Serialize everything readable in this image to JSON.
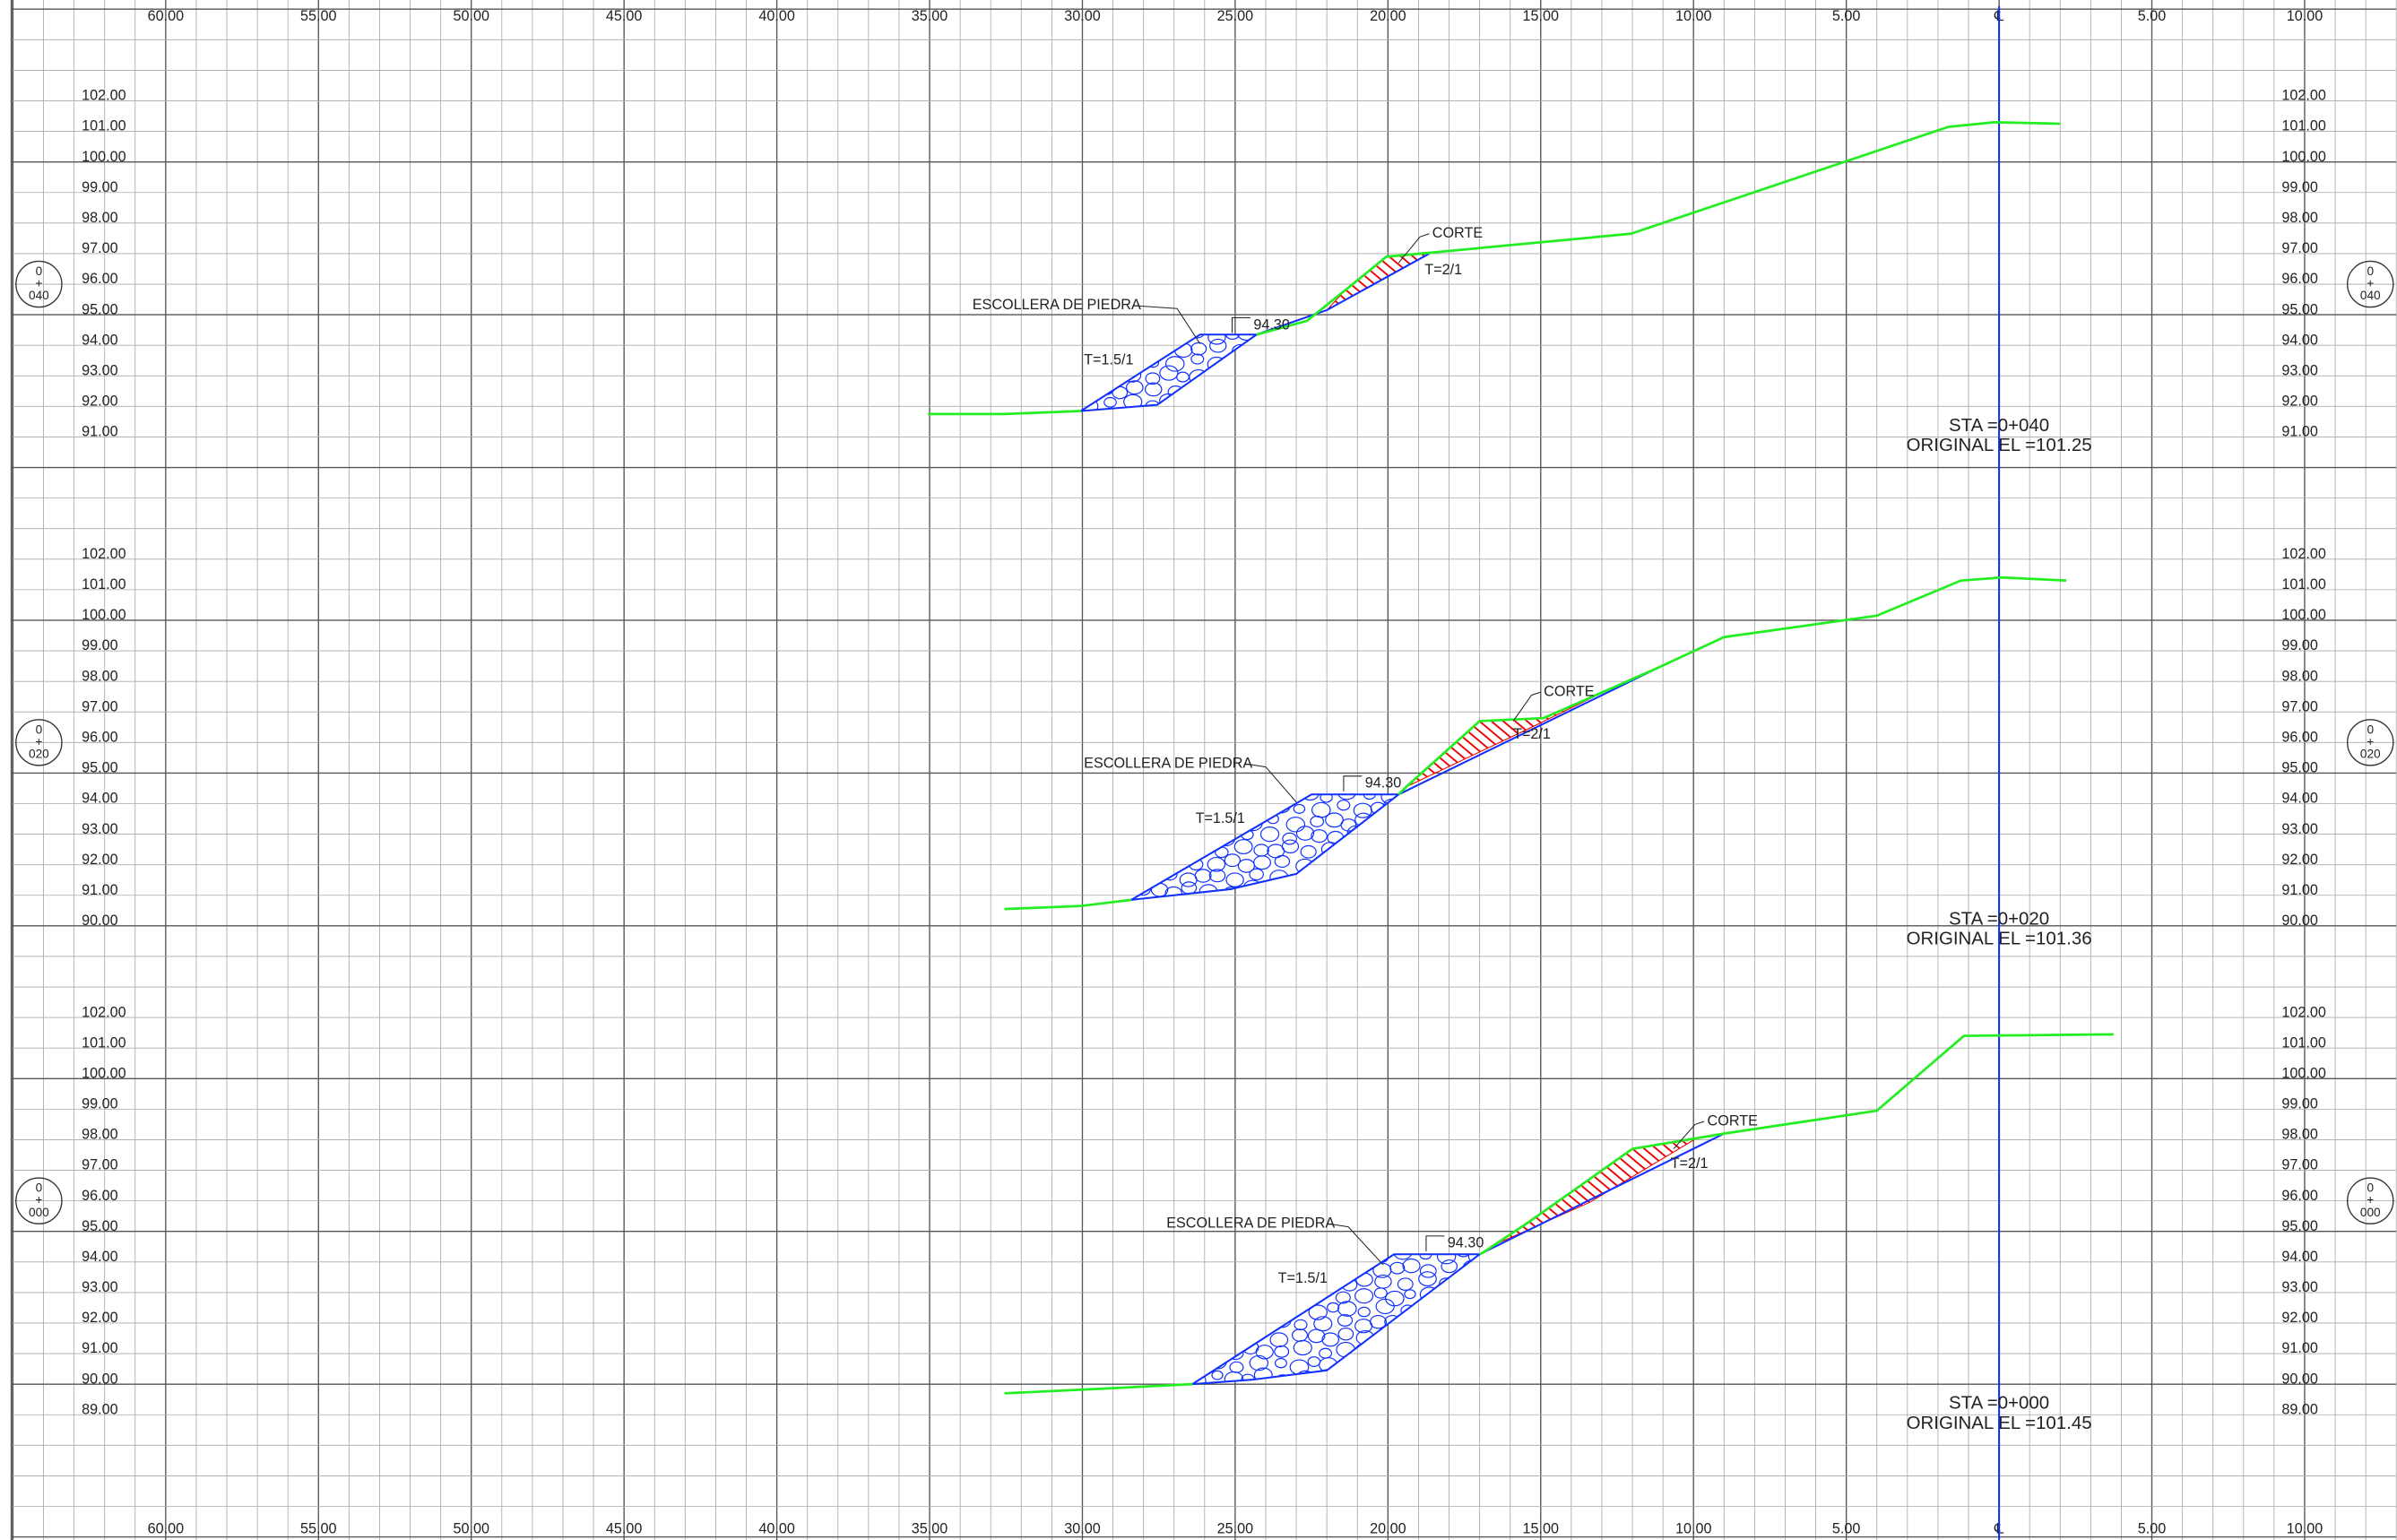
{
  "x_labels_left": [
    "60.00",
    "55.00",
    "50.00",
    "45.00",
    "40.00",
    "35.00",
    "30.00",
    "25.00",
    "20.00",
    "15.00",
    "10.00",
    "5.00"
  ],
  "center_label": "℄",
  "x_labels_right": [
    "5.00",
    "10.00"
  ],
  "sections": [
    {
      "marker": [
        "0",
        "+",
        "040"
      ],
      "elevations": [
        "102.00",
        "101.00",
        "100.00",
        "99.00",
        "98.00",
        "97.00",
        "96.00",
        "95.00",
        "94.00",
        "93.00",
        "92.00",
        "91.00"
      ],
      "station": "STA =0+040",
      "original": "ORIGINAL EL =101.25",
      "riprap": "ESCOLLERA DE PIEDRA",
      "riprap_slope": "T=1.5/1",
      "level": "94.30",
      "cut": "CORTE",
      "cut_slope": "T=2/1"
    },
    {
      "marker": [
        "0",
        "+",
        "020"
      ],
      "elevations": [
        "102.00",
        "101.00",
        "100.00",
        "99.00",
        "98.00",
        "97.00",
        "96.00",
        "95.00",
        "94.00",
        "93.00",
        "92.00",
        "91.00",
        "90.00"
      ],
      "station": "STA =0+020",
      "original": "ORIGINAL EL =101.36",
      "riprap": "ESCOLLERA DE PIEDRA",
      "riprap_slope": "T=1.5/1",
      "level": "94.30",
      "cut": "CORTE",
      "cut_slope": "T=2/1"
    },
    {
      "marker": [
        "0",
        "+",
        "000"
      ],
      "elevations": [
        "102.00",
        "101.00",
        "100.00",
        "99.00",
        "98.00",
        "97.00",
        "96.00",
        "95.00",
        "94.00",
        "93.00",
        "92.00",
        "91.00",
        "90.00",
        "89.00"
      ],
      "station": "STA =0+000",
      "original": "ORIGINAL EL =101.45",
      "riprap": "ESCOLLERA DE PIEDRA",
      "riprap_slope": "T=1.5/1",
      "level": "94.30",
      "cut": "CORTE",
      "cut_slope": "T=2/1"
    }
  ]
}
